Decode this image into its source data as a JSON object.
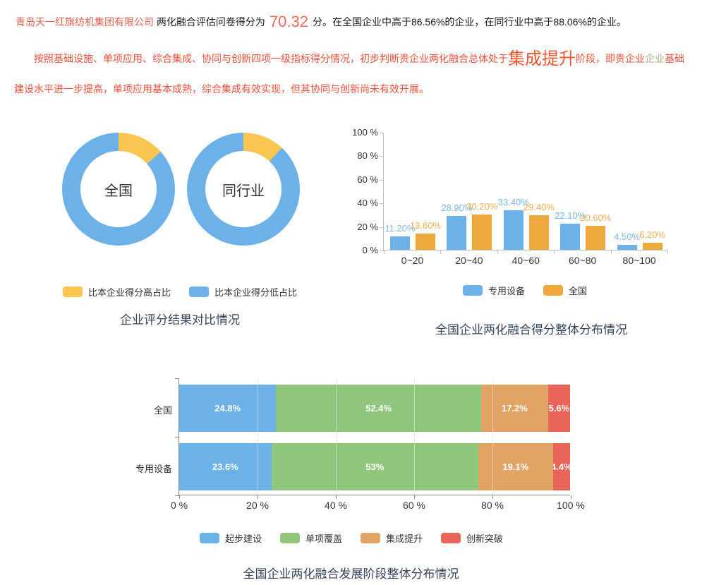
{
  "summary": {
    "company": "青岛天一红旗纺机集团有限公司",
    "before_score": " 两化融合评估问卷得分为",
    "score": "70.32",
    "after_score": "分。在全国企业中高于86.56%的企业，在同行业中高于88.06%的企业。"
  },
  "analysis": {
    "part1": "按照基础设施、单项应用、综合集成、协同与创新四项一级指标得分情况，初步判断贵企业两化融合总体处于",
    "stage": "集成提升",
    "part2": "阶段，即贵企业",
    "entity": "企业",
    "part3": "基础建设水平进一步提高，单项应用基本成熟，综合集成有效实现，但其协同与创新尚未有效开展。"
  },
  "chart_data": [
    {
      "type": "pie",
      "title": "企业评分结果对比情况",
      "donuts": [
        {
          "label": "全国",
          "higher_pct": 13.44,
          "lower_pct": 86.56
        },
        {
          "label": "同行业",
          "higher_pct": 11.94,
          "lower_pct": 88.06
        }
      ],
      "colors": {
        "higher": "#f8c651",
        "lower": "#6cb1e8"
      },
      "legend": [
        {
          "label": "比本企业得分高占比",
          "color": "#f8c651"
        },
        {
          "label": "比本企业得分低占比",
          "color": "#6cb1e8"
        }
      ],
      "legend_position": "bottom"
    },
    {
      "type": "bar",
      "title": "全国企业两化融合得分整体分布情况",
      "categories": [
        "0~20",
        "20~40",
        "40~60",
        "60~80",
        "80~100"
      ],
      "series": [
        {
          "name": "专用设备",
          "color": "#6cb1e8",
          "label_color": "#7db7e8",
          "values": [
            11.2,
            28.9,
            33.4,
            22.1,
            4.5
          ],
          "labels": [
            "11.20%",
            "28.90%",
            "33.40%",
            "22.10%",
            "4.50%"
          ]
        },
        {
          "name": "全国",
          "color": "#eda93c",
          "label_color": "#f2ae56",
          "values": [
            13.6,
            30.2,
            29.4,
            20.6,
            6.2
          ],
          "labels": [
            "13.60%",
            "30.20%",
            "29.40%",
            "20.60%",
            "6.20%"
          ]
        }
      ],
      "yticks": [
        "100 %",
        "80 %",
        "60 %",
        "40 %",
        "20 %",
        "0 %"
      ],
      "ylim": [
        0,
        100
      ],
      "xlabel": "",
      "ylabel": "",
      "grid": false,
      "legend_position": "bottom"
    },
    {
      "type": "bar-horizontal-stacked",
      "title": "全国企业两化融合发展阶段整体分布情况",
      "rows": [
        {
          "label": "全国",
          "segments": [
            24.8,
            52.4,
            17.2,
            5.6
          ],
          "segment_labels": [
            "24.8%",
            "52.4%",
            "17.2%",
            "5.6%"
          ]
        },
        {
          "label": "专用设备",
          "segments": [
            23.6,
            53,
            19.1,
            4.4
          ],
          "segment_labels": [
            "23.6%",
            "53%",
            "19.1%",
            "4.4%"
          ]
        }
      ],
      "xticks": [
        "0 %",
        "20 %",
        "40 %",
        "60 %",
        "80 %",
        "100 %"
      ],
      "xlim": [
        0,
        100
      ],
      "grid": true,
      "legend": [
        {
          "label": "起步建设",
          "color": "#6cb1e8"
        },
        {
          "label": "单项覆盖",
          "color": "#90c77c"
        },
        {
          "label": "集成提升",
          "color": "#e2a465"
        },
        {
          "label": "创新突破",
          "color": "#e9655a"
        }
      ],
      "legend_position": "bottom"
    }
  ]
}
